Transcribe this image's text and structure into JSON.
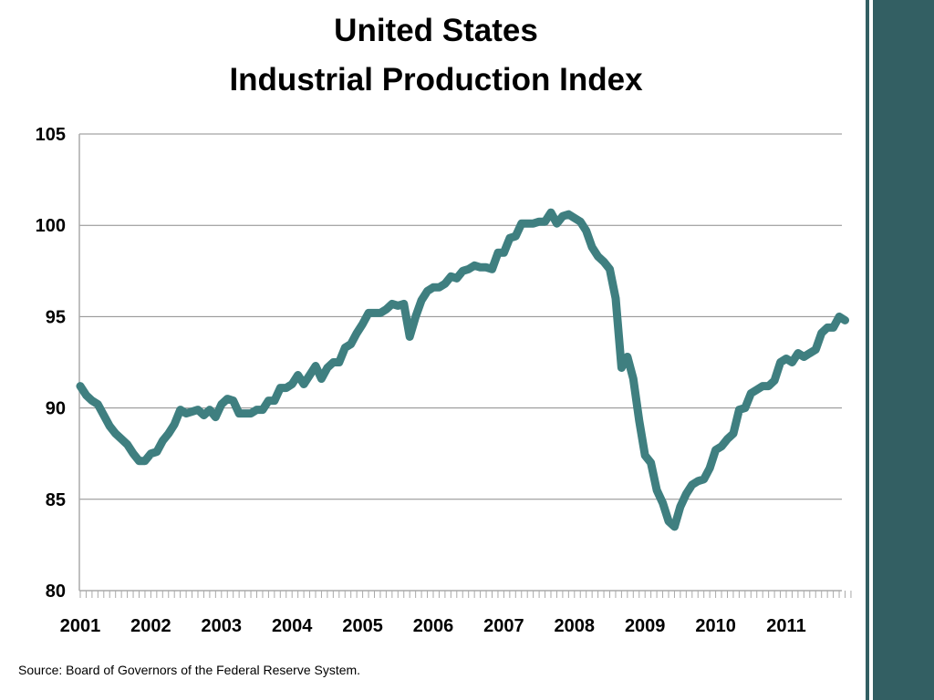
{
  "title_line1": "United States",
  "title_line2": "Industrial Production Index",
  "source": "Source: Board of Governors of the Federal Reserve System.",
  "colors": {
    "line": "#3f7f80",
    "sidebar": "#335f63",
    "grid": "#8c8c8c"
  },
  "chart_data": {
    "type": "line",
    "title": "United States Industrial Production Index",
    "xlabel": "",
    "ylabel": "",
    "ylim": [
      80,
      105
    ],
    "yticks": [
      80,
      85,
      90,
      95,
      100,
      105
    ],
    "xticks": [
      "2001",
      "2002",
      "2003",
      "2004",
      "2005",
      "2006",
      "2007",
      "2008",
      "2009",
      "2010",
      "2011"
    ],
    "grid": true,
    "legend": "none",
    "frequency": "monthly",
    "start": "2001-01",
    "end": "2011-11",
    "values": [
      91.2,
      90.7,
      90.4,
      90.2,
      89.6,
      89.0,
      88.6,
      88.3,
      88.0,
      87.5,
      87.1,
      87.1,
      87.5,
      87.6,
      88.2,
      88.6,
      89.1,
      89.9,
      89.7,
      89.8,
      89.9,
      89.6,
      89.9,
      89.5,
      90.2,
      90.5,
      90.4,
      89.7,
      89.7,
      89.7,
      89.9,
      89.9,
      90.4,
      90.4,
      91.1,
      91.1,
      91.3,
      91.8,
      91.3,
      91.8,
      92.3,
      91.6,
      92.2,
      92.5,
      92.5,
      93.3,
      93.5,
      94.1,
      94.6,
      95.2,
      95.2,
      95.2,
      95.4,
      95.7,
      95.6,
      95.7,
      93.9,
      95.0,
      95.9,
      96.4,
      96.6,
      96.6,
      96.8,
      97.2,
      97.1,
      97.5,
      97.6,
      97.8,
      97.7,
      97.7,
      97.6,
      98.5,
      98.5,
      99.3,
      99.4,
      100.1,
      100.1,
      100.1,
      100.2,
      100.2,
      100.7,
      100.1,
      100.5,
      100.6,
      100.4,
      100.2,
      99.7,
      98.8,
      98.3,
      98.0,
      97.6,
      96.0,
      92.2,
      92.8,
      91.6,
      89.3,
      87.4,
      87.0,
      85.5,
      84.8,
      83.8,
      83.5,
      84.6,
      85.3,
      85.8,
      86.0,
      86.1,
      86.7,
      87.7,
      87.9,
      88.3,
      88.6,
      89.9,
      90.0,
      90.8,
      91.0,
      91.2,
      91.2,
      91.5,
      92.5,
      92.7,
      92.5,
      93.0,
      92.8,
      93.0,
      93.2,
      94.1,
      94.4,
      94.4,
      95.0,
      94.8
    ]
  }
}
